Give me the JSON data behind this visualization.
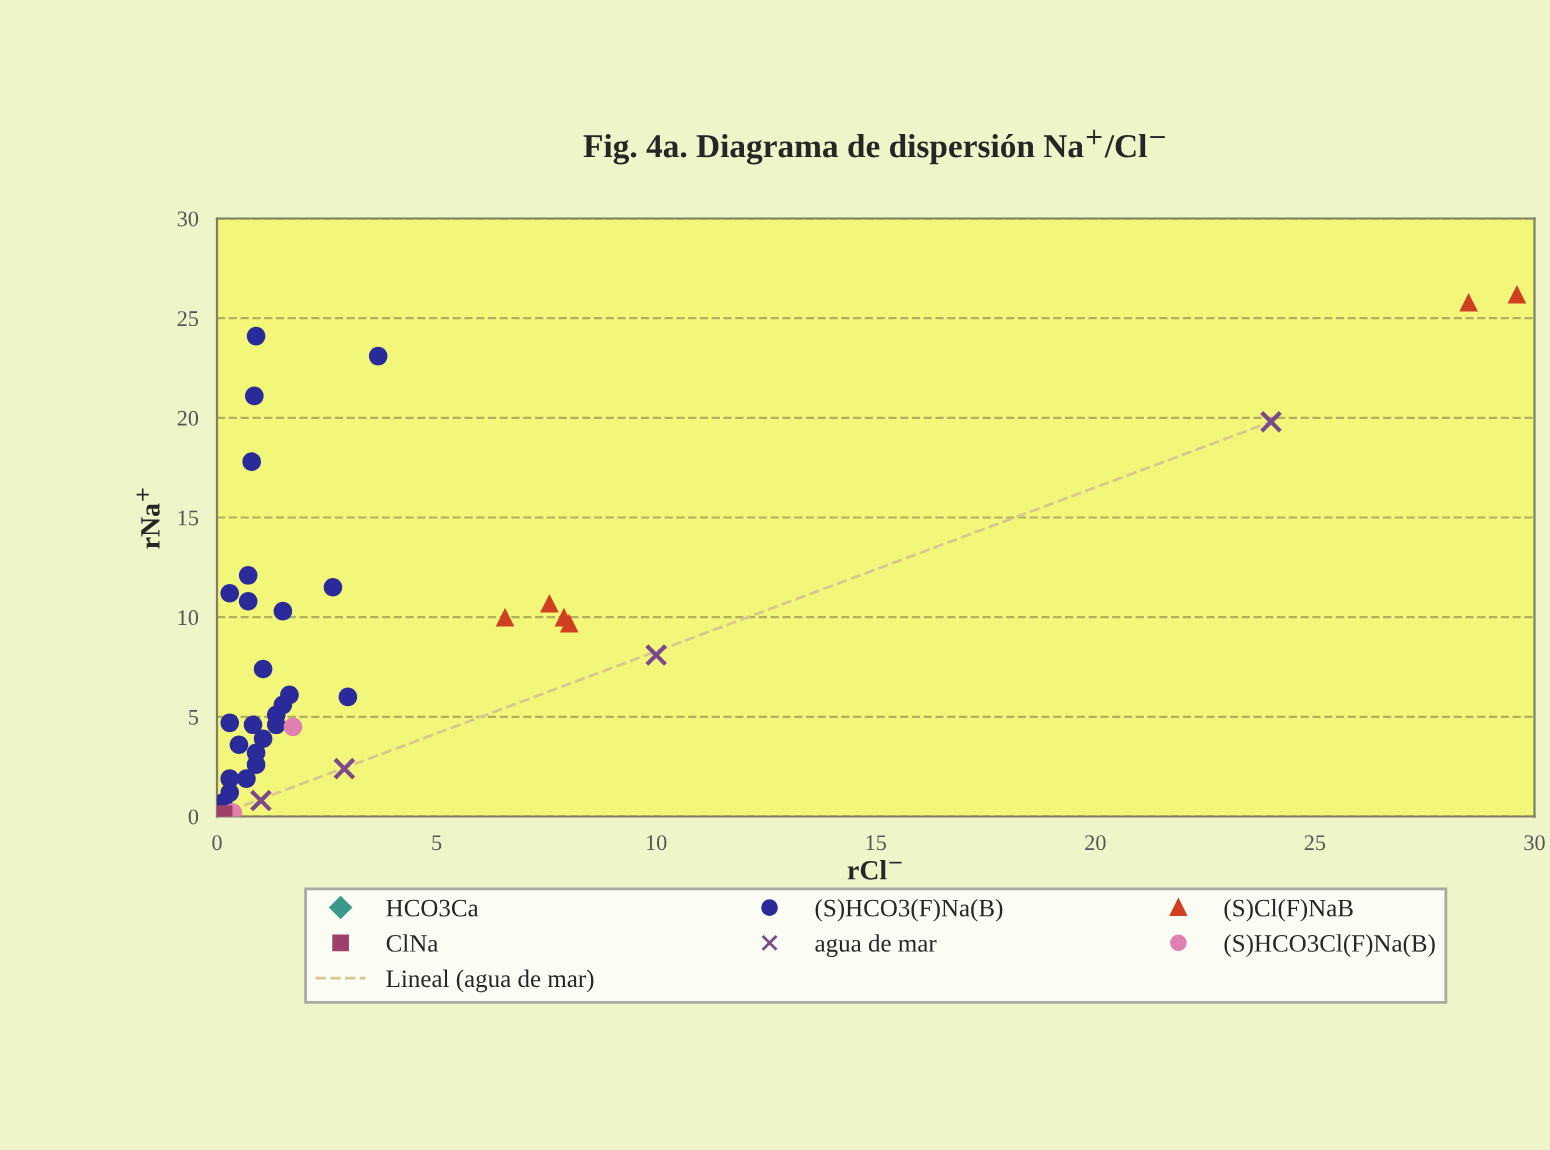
{
  "chart_data": {
    "type": "scatter",
    "title": "Fig. 4a. Diagrama de dispersión Na$^{+}$/Cl$^{−}$",
    "xlabel": "rCl$^{−}$",
    "ylabel": "rNa$^{+}$",
    "xlim": [
      0,
      30
    ],
    "ylim": [
      0,
      30
    ],
    "xticks": [
      0,
      5,
      10,
      15,
      20,
      25,
      30
    ],
    "yticks": [
      0,
      5,
      10,
      15,
      20,
      25,
      30
    ],
    "grid": "y",
    "legend": "bottom",
    "series": [
      {
        "name": "HCO3Ca",
        "color": "#3a9a8a",
        "marker": "diamond"
      },
      {
        "name": "ClNa",
        "color": "#a0406a",
        "marker": "square",
        "x": [
          0.14
        ],
        "values": [
          0.1
        ]
      },
      {
        "name": "Lineal (agua de mar)",
        "type": "line",
        "line_style": "dashed",
        "marker": "none",
        "color": "#d8c890",
        "x": [
          0.3,
          24.0
        ],
        "values": [
          0.3,
          19.8
        ]
      },
      {
        "name": "(S)HCO3(F)Na(B)",
        "color": "#2a2a9a",
        "marker": "circle",
        "x": [
          0.89,
          0.85,
          0.79,
          3.67,
          0.71,
          0.29,
          0.71,
          1.5,
          2.64,
          1.05,
          2.98,
          1.65,
          1.5,
          1.35,
          0.29,
          0.82,
          1.05,
          0.5,
          0.89,
          0.89,
          0.29,
          0.67,
          0.29,
          0.14,
          1.35
        ],
        "values": [
          24.1,
          21.1,
          17.8,
          23.1,
          12.1,
          11.2,
          10.8,
          10.3,
          11.5,
          7.4,
          6.0,
          6.1,
          5.6,
          5.1,
          4.7,
          4.6,
          3.9,
          3.6,
          3.2,
          2.6,
          1.9,
          1.9,
          1.2,
          0.7,
          4.6
        ]
      },
      {
        "name": "agua de mar",
        "color": "#7a4a8a",
        "marker": "cross",
        "x": [
          1.0,
          2.9,
          10.0,
          24.0
        ],
        "values": [
          0.8,
          2.4,
          8.1,
          19.8
        ]
      },
      {
        "name": "(S)Cl(F)NaB",
        "color": "#d04020",
        "marker": "triangle",
        "x": [
          6.56,
          7.57,
          7.9,
          8.02,
          28.5,
          29.6
        ],
        "values": [
          10.0,
          10.7,
          10.0,
          9.7,
          25.8,
          26.2
        ]
      },
      {
        "name": "(S)HCO3Cl(F)Na(B)",
        "color": "#e080b0",
        "marker": "circle",
        "x": [
          1.73,
          0.36
        ],
        "values": [
          4.5,
          0.2
        ]
      }
    ]
  }
}
